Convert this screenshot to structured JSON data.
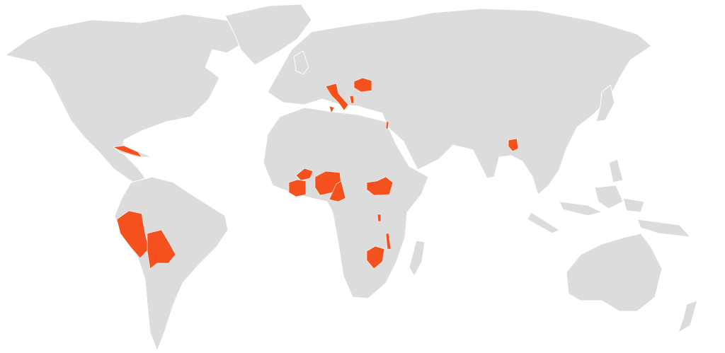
{
  "map": {
    "background_color": "#ffffff",
    "land_color": "#dcdcdc",
    "highlight_color": "#f4511e",
    "highlighted_regions": [
      "cuba",
      "italy",
      "albania",
      "romania",
      "lebanon",
      "bangladesh",
      "burkina-faso",
      "cote-divoire-ghana",
      "nigeria",
      "cameroon",
      "south-sudan",
      "rwanda-burundi",
      "malawi",
      "zimbabwe",
      "peru",
      "bolivia"
    ]
  }
}
